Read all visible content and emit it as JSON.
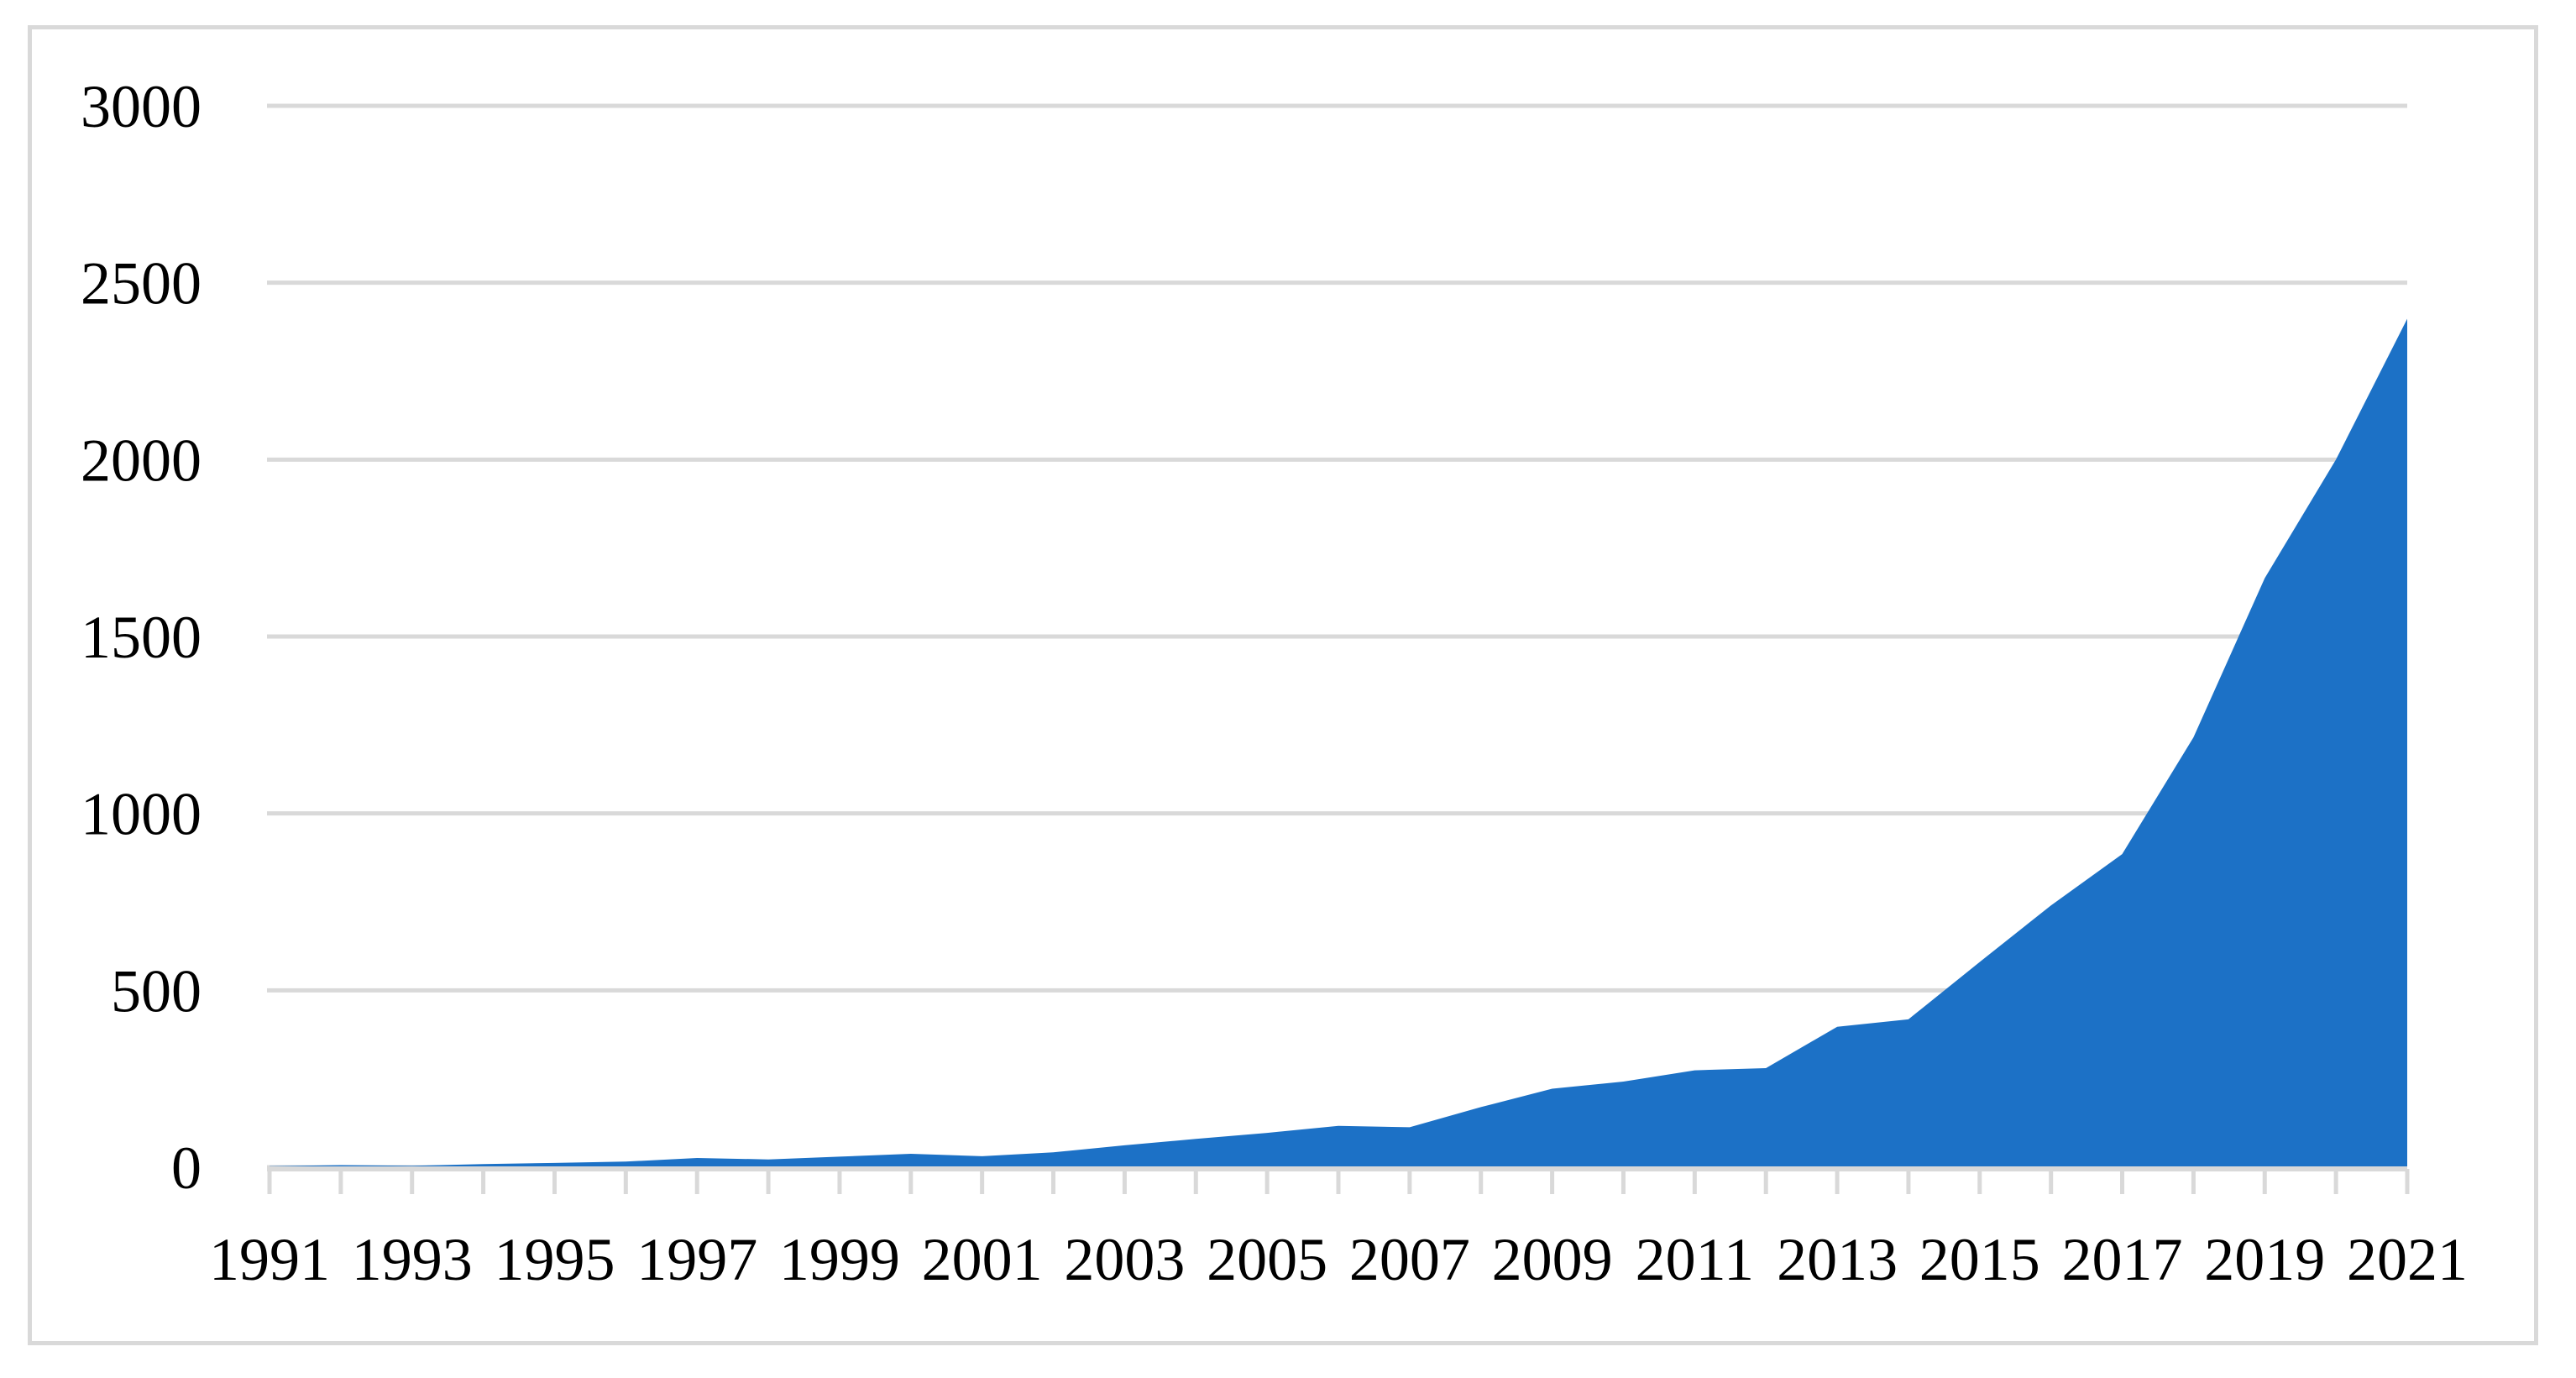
{
  "chart_data": {
    "type": "area",
    "title": "",
    "xlabel": "",
    "ylabel": "",
    "years": [
      1991,
      1992,
      1993,
      1994,
      1995,
      1996,
      1997,
      1998,
      1999,
      2000,
      2001,
      2002,
      2003,
      2004,
      2005,
      2006,
      2007,
      2008,
      2009,
      2010,
      2011,
      2012,
      2013,
      2014,
      2015,
      2016,
      2017,
      2018,
      2019,
      2020,
      2021
    ],
    "values": [
      3,
      6,
      4,
      9,
      12,
      16,
      26,
      22,
      30,
      38,
      31,
      42,
      62,
      80,
      97,
      117,
      113,
      170,
      222,
      242,
      274,
      280,
      397,
      418,
      580,
      740,
      885,
      1215,
      1665,
      2000,
      2398
    ],
    "ylim": [
      0,
      3000
    ],
    "y_axis_tick_values": [
      0,
      500,
      1000,
      1500,
      2000,
      2500,
      3000
    ],
    "y_axis_tick_labels": [
      "0",
      "500",
      "1000",
      "1500",
      "2000",
      "2500",
      "3000"
    ],
    "x_axis_tick_label_years": [
      1991,
      1993,
      1995,
      1997,
      1999,
      2001,
      2003,
      2005,
      2007,
      2009,
      2011,
      2013,
      2015,
      2017,
      2019,
      2021
    ],
    "x_axis_tick_labels": [
      "1991",
      "1993",
      "1995",
      "1997",
      "1999",
      "2001",
      "2003",
      "2005",
      "2007",
      "2009",
      "2011",
      "2013",
      "2015",
      "2017",
      "2019",
      "2021"
    ],
    "grid": true,
    "legend": "none",
    "colors": {
      "area_fill": "#1c71c6",
      "gridline": "#d9d9d9",
      "axis_line": "#d9d9d9",
      "tick_mark": "#d9d9d9",
      "label_text": "#000000",
      "frame_border": "#d9d9d9",
      "background": "#ffffff"
    }
  }
}
